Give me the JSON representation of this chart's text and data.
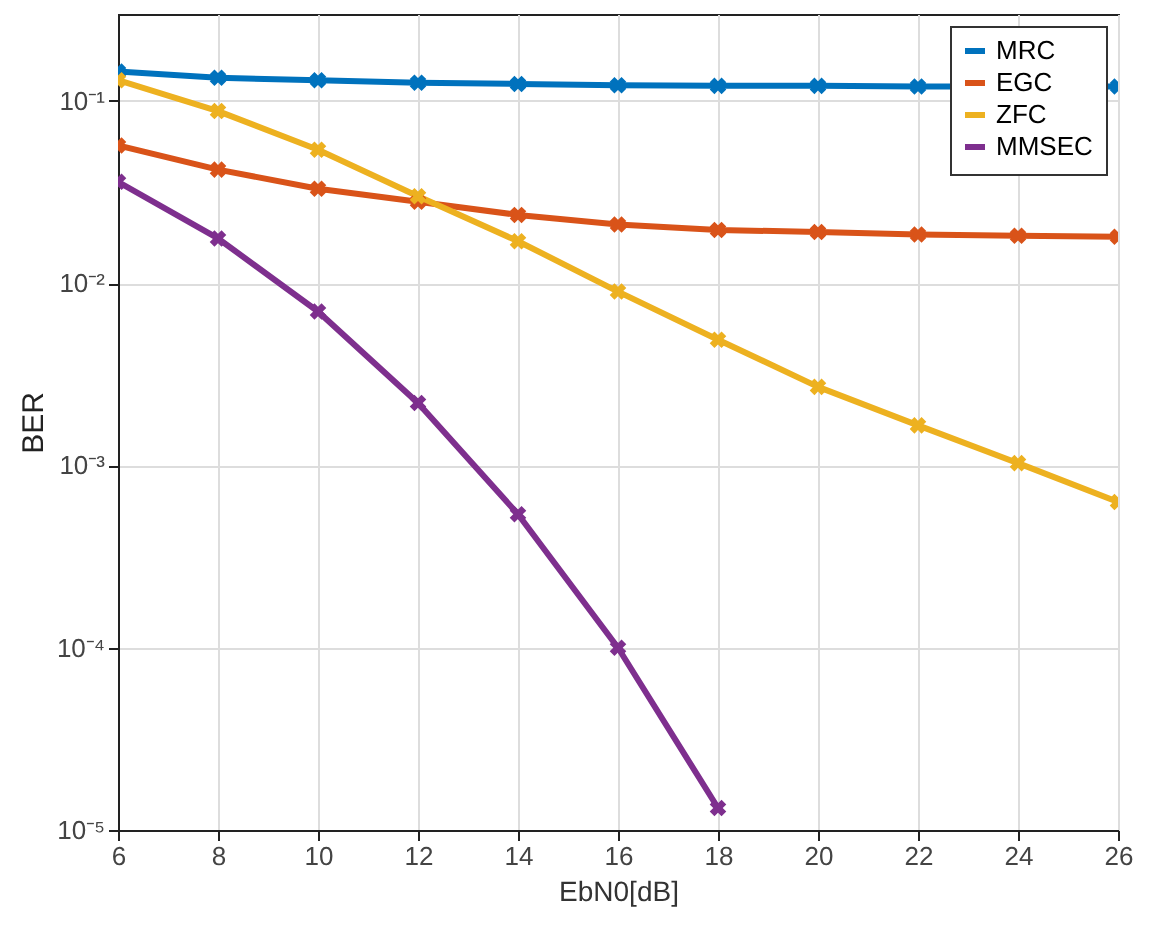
{
  "chart_data": {
    "type": "line",
    "xlabel": "EbN0[dB]",
    "ylabel": "BER",
    "x": [
      6,
      8,
      10,
      12,
      14,
      16,
      18,
      20,
      22,
      24,
      26
    ],
    "series": [
      {
        "name": "MRC",
        "color": "#0072bd",
        "values": [
          0.145,
          0.134,
          0.13,
          0.126,
          0.124,
          0.122,
          0.121,
          0.121,
          0.12,
          null,
          0.12
        ]
      },
      {
        "name": "EGC",
        "color": "#d95319",
        "values": [
          0.057,
          0.042,
          0.033,
          0.028,
          0.0237,
          0.021,
          0.0196,
          0.0191,
          0.0185,
          0.0182,
          0.018
        ]
      },
      {
        "name": "ZFC",
        "color": "#edb120",
        "values": [
          0.13,
          0.088,
          0.054,
          0.03,
          0.017,
          0.009,
          0.0049,
          0.0027,
          0.00166,
          0.00103,
          0.00063
        ]
      },
      {
        "name": "MMSEC",
        "color": "#7e2f8e",
        "values": [
          0.036,
          0.0176,
          0.007,
          0.0022,
          0.00054,
          0.0001,
          1.32e-05,
          null,
          null,
          null,
          null
        ]
      }
    ],
    "xlim": [
      6,
      26
    ],
    "xticks": [
      6,
      8,
      10,
      12,
      14,
      16,
      18,
      20,
      22,
      24,
      26
    ],
    "log": true,
    "ylim": [
      1e-05,
      0.3
    ],
    "yticks": [
      {
        "value": 1e-05,
        "label": "10⁻⁵"
      },
      {
        "value": 0.0001,
        "label": "10⁻⁴"
      },
      {
        "value": 0.001,
        "label": "10⁻³"
      },
      {
        "value": 0.01,
        "label": "10⁻²"
      },
      {
        "value": 0.1,
        "label": "10⁻¹"
      }
    ],
    "grid": true,
    "legend": "top right",
    "marker": "cross",
    "line_style": "solid"
  }
}
